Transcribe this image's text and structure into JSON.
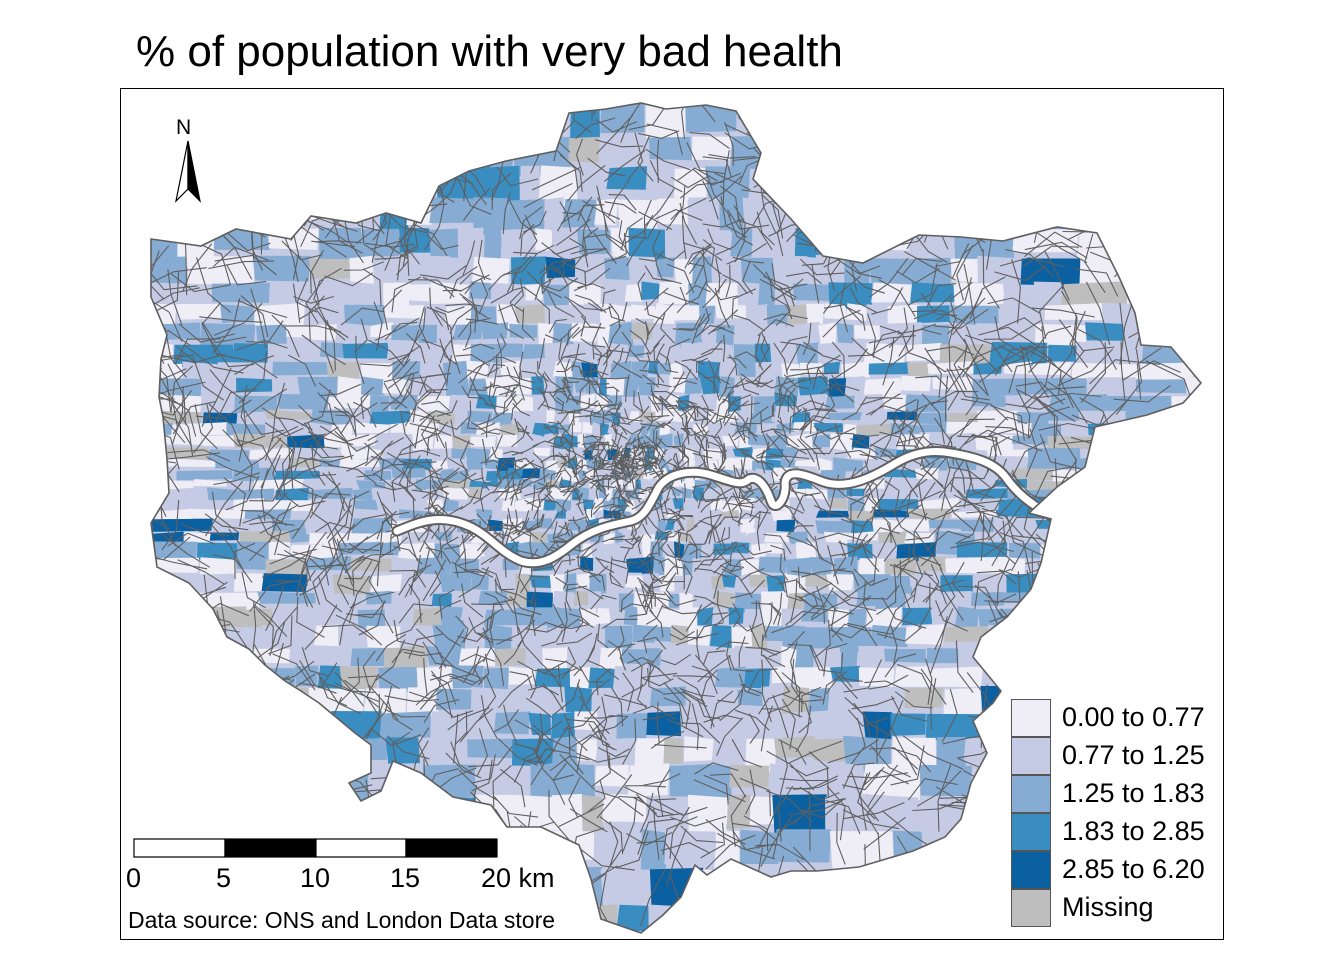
{
  "title": "% of population with very bad health",
  "credits": "Data source: ONS and London Data store",
  "north_arrow": {
    "label": "N"
  },
  "scale_bar": {
    "ticks": [
      "0",
      "5",
      "10",
      "15",
      "20 km"
    ]
  },
  "legend": {
    "items": [
      {
        "label": "0.00 to 0.77",
        "color": "#efedf5"
      },
      {
        "label": "0.77 to 1.25",
        "color": "#c6cbe5"
      },
      {
        "label": "1.25 to 1.83",
        "color": "#86acd3"
      },
      {
        "label": "1.83 to 2.85",
        "color": "#3a8dc1"
      },
      {
        "label": "2.85 to 6.20",
        "color": "#0a60a0"
      },
      {
        "label": "Missing",
        "color": "#bebebe"
      }
    ]
  },
  "colors": {
    "boundary": "#5f5f5f",
    "river": "#ffffff",
    "frame": "#000000"
  }
}
